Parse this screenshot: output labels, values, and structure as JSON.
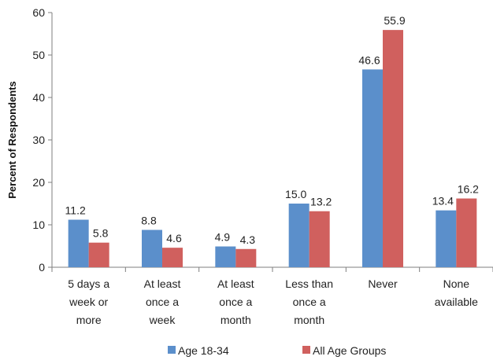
{
  "chart_data": {
    "type": "bar",
    "title": "",
    "xlabel": "",
    "ylabel": "Percent of Respondents",
    "ylim": [
      0,
      60
    ],
    "yticks": [
      0,
      10,
      20,
      30,
      40,
      50,
      60
    ],
    "categories": [
      [
        "5 days a",
        "week or",
        "more"
      ],
      [
        "At least",
        "once a",
        "week"
      ],
      [
        "At least",
        "once a",
        "month"
      ],
      [
        "Less than",
        "once a",
        "month"
      ],
      [
        "Never"
      ],
      [
        "None",
        "available"
      ]
    ],
    "series": [
      {
        "name": "Age 18-34",
        "color": "#5b8fcb",
        "values": [
          11.2,
          8.8,
          4.9,
          15.0,
          46.6,
          13.4
        ],
        "labels": [
          "11.2",
          "8.8",
          "4.9",
          "15.0",
          "46.6",
          "13.4"
        ]
      },
      {
        "name": "All Age Groups",
        "color": "#d0605e",
        "values": [
          5.8,
          4.6,
          4.3,
          13.2,
          55.9,
          16.2
        ],
        "labels": [
          "5.8",
          "4.6",
          "4.3",
          "13.2",
          "55.9",
          "16.2"
        ]
      }
    ],
    "grid": false,
    "legend": "bottom"
  }
}
